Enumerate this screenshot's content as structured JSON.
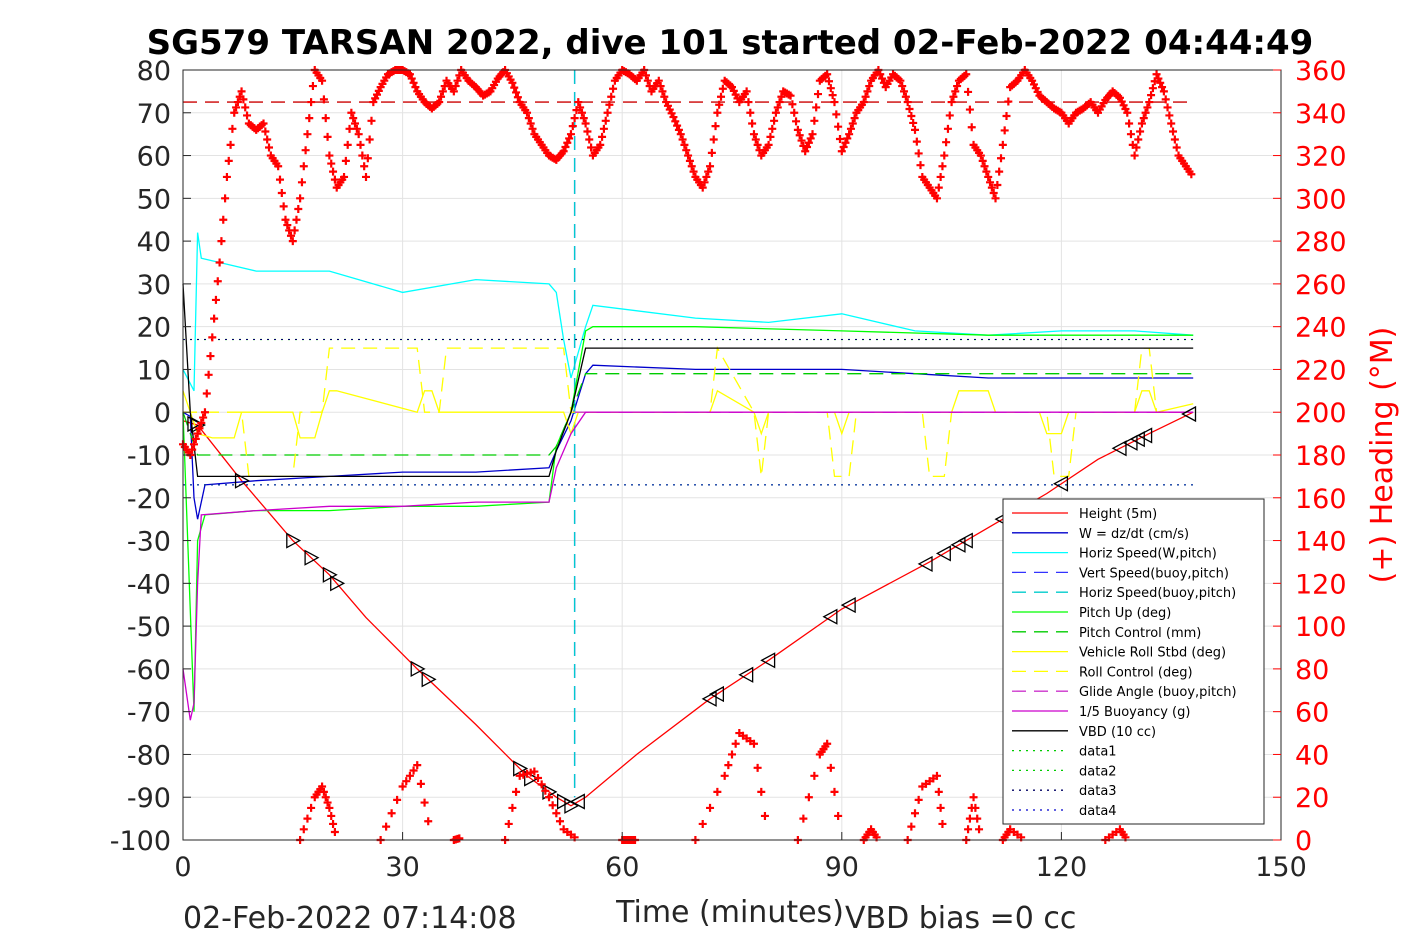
{
  "chart_data": {
    "type": "line",
    "title": "SG579 TARSAN 2022, dive 101 started 02-Feb-2022 04:44:49",
    "xlabel": "Time (minutes)",
    "ylabel_right": "(+) Heading (°M)",
    "xlim": [
      0,
      150
    ],
    "ylim": [
      -100,
      80
    ],
    "ylim_right": [
      0,
      360
    ],
    "x_ticks": [
      "0",
      "30",
      "60",
      "90",
      "120",
      "150"
    ],
    "y_ticks": [
      "80",
      "70",
      "60",
      "50",
      "40",
      "30",
      "20",
      "10",
      "0",
      "-10",
      "-20",
      "-30",
      "-40",
      "-50",
      "-60",
      "-70",
      "-80",
      "-90",
      "-100"
    ],
    "y_right_ticks": [
      "360",
      "340",
      "320",
      "300",
      "280",
      "260",
      "240",
      "220",
      "200",
      "180",
      "160",
      "140",
      "120",
      "100",
      "80",
      "60",
      "40",
      "20",
      "0"
    ],
    "grid": true,
    "legend_position": "bottom-right",
    "footer_left": "02-Feb-2022 07:14:08",
    "footer_right": "VBD bias =0 cc",
    "colors": {
      "height": "#ff0000",
      "w": "#0000cc",
      "horiz": "#00ffff",
      "vert_buoy": "#3333ff",
      "horiz_buoy": "#00cccc",
      "pitch": "#00ff00",
      "pitch_ctrl": "#00cc00",
      "roll": "#ffff00",
      "roll_ctrl": "#ffff00",
      "glide": "#cc33cc",
      "buoyancy": "#cc00cc",
      "vbd": "#000000",
      "heading": "#ff0000",
      "ref": "#000099"
    },
    "legend": [
      {
        "label": "Height (5m)",
        "style": "solid",
        "color": "#ff0000"
      },
      {
        "label": "W = dz/dt (cm/s)",
        "style": "solid",
        "color": "#0000cc"
      },
      {
        "label": "Horiz Speed(W,pitch)",
        "style": "solid",
        "color": "#00ffff"
      },
      {
        "label": "Vert Speed(buoy,pitch)",
        "style": "dashed",
        "color": "#3333ff"
      },
      {
        "label": "Horiz Speed(buoy,pitch)",
        "style": "dashed",
        "color": "#00cccc"
      },
      {
        "label": "Pitch Up (deg)",
        "style": "solid",
        "color": "#00ff00"
      },
      {
        "label": "Pitch Control (mm)",
        "style": "dashed",
        "color": "#00cc00"
      },
      {
        "label": "Vehicle Roll Stbd (deg)",
        "style": "solid",
        "color": "#ffff00"
      },
      {
        "label": "Roll Control (deg)",
        "style": "dashed",
        "color": "#ffff00"
      },
      {
        "label": "Glide Angle (buoy,pitch)",
        "style": "dashed",
        "color": "#cc33cc"
      },
      {
        "label": "1/5 Buoyancy (g)",
        "style": "solid",
        "color": "#cc00cc"
      },
      {
        "label": "VBD (10 cc)",
        "style": "solid",
        "color": "#000000"
      },
      {
        "label": "data1",
        "style": "dotted",
        "color": "#00cc00"
      },
      {
        "label": "data2",
        "style": "dotted",
        "color": "#00cc00"
      },
      {
        "label": "data3",
        "style": "dotted",
        "color": "#000066"
      },
      {
        "label": "data4",
        "style": "dotted",
        "color": "#0000cc"
      }
    ],
    "series": [
      {
        "name": "Height (5m)",
        "axis": "left",
        "x": [
          0,
          2,
          8,
          15,
          20,
          25,
          32,
          40,
          47,
          51,
          53,
          55,
          62,
          72,
          80,
          90,
          102,
          110,
          118,
          125,
          132,
          138
        ],
        "y": [
          -2,
          -3,
          -16,
          -30,
          -38,
          -48,
          -60,
          -73,
          -85,
          -90,
          -92,
          -90,
          -80,
          -67,
          -58,
          -46,
          -35,
          -27,
          -19,
          -11,
          -5,
          0
        ]
      },
      {
        "name": "W = dz/dt (cm/s)",
        "axis": "left",
        "x": [
          0,
          1,
          1.5,
          2,
          3,
          10,
          20,
          30,
          40,
          50,
          51,
          53,
          55,
          56,
          70,
          90,
          100,
          110,
          120,
          130,
          138
        ],
        "y": [
          0,
          -1,
          -20,
          -25,
          -17,
          -16,
          -15,
          -14,
          -14,
          -13,
          -9,
          -2,
          9,
          11,
          10,
          10,
          9,
          8,
          8,
          8,
          8
        ]
      },
      {
        "name": "Horiz Speed(W,pitch)",
        "axis": "left",
        "x": [
          0,
          1.5,
          2,
          2.5,
          5,
          10,
          20,
          30,
          40,
          50,
          51,
          52,
          53,
          55,
          56,
          70,
          80,
          90,
          100,
          110,
          120,
          130,
          138
        ],
        "y": [
          10,
          5,
          42,
          36,
          35,
          33,
          33,
          28,
          31,
          30,
          28,
          17,
          8,
          20,
          25,
          22,
          21,
          23,
          19,
          18,
          19,
          19,
          18
        ]
      },
      {
        "name": "Vert Speed(buoy,pitch)",
        "axis": "left",
        "x": [
          53.5,
          53.5
        ],
        "y": [
          80,
          -90
        ]
      },
      {
        "name": "Horiz Speed(buoy,pitch)",
        "axis": "left",
        "x": [
          53.5,
          53.5
        ],
        "y": [
          80,
          -90
        ]
      },
      {
        "name": "Pitch Up (deg)",
        "axis": "left",
        "x": [
          0,
          1.5,
          2,
          3,
          10,
          20,
          30,
          40,
          50,
          51,
          53,
          55,
          56,
          70,
          90,
          110,
          130,
          138
        ],
        "y": [
          0,
          -70,
          -30,
          -24,
          -23,
          -23,
          -22,
          -22,
          -21,
          -8,
          0,
          19,
          20,
          20,
          19,
          18,
          18,
          18
        ]
      },
      {
        "name": "Pitch Control (mm)",
        "axis": "left",
        "x": [
          0,
          2,
          3,
          50,
          51,
          53,
          55,
          138
        ],
        "y": [
          0,
          -10,
          -10,
          -10,
          -8,
          0,
          9,
          9
        ]
      },
      {
        "name": "Vehicle Roll Stbd (deg)",
        "axis": "left",
        "x": [
          0,
          2,
          4,
          7,
          8,
          15,
          16,
          18,
          19,
          20,
          21,
          32,
          33,
          34,
          35,
          52,
          53,
          54,
          56,
          72,
          73,
          78,
          79,
          80,
          89,
          90,
          91,
          105,
          106,
          110,
          111,
          117,
          118,
          120,
          121,
          130,
          131,
          132,
          133,
          138
        ],
        "y": [
          5,
          -5,
          -6,
          -6,
          0,
          0,
          -6,
          -6,
          0,
          5,
          5,
          0,
          5,
          5,
          0,
          0,
          -5,
          0,
          0,
          0,
          5,
          0,
          -5,
          0,
          0,
          -5,
          0,
          0,
          5,
          5,
          0,
          0,
          -5,
          -5,
          0,
          0,
          5,
          5,
          0,
          2
        ]
      },
      {
        "name": "Roll Control (deg)",
        "axis": "left",
        "x": [
          0,
          2,
          8,
          9,
          15,
          16,
          19,
          20,
          32,
          33,
          35,
          36,
          52,
          53,
          72,
          73,
          78,
          79,
          80,
          88,
          89,
          91,
          92,
          101,
          102,
          104,
          105,
          118,
          119,
          121,
          122,
          130,
          131,
          132,
          133,
          138
        ],
        "y": [
          0,
          0,
          0,
          -15,
          -15,
          0,
          0,
          15,
          15,
          0,
          0,
          15,
          15,
          0,
          0,
          15,
          0,
          -15,
          0,
          0,
          -15,
          -15,
          0,
          0,
          -15,
          -15,
          0,
          0,
          -15,
          -15,
          0,
          0,
          15,
          15,
          0,
          0
        ]
      },
      {
        "name": "Glide Angle (buoy,pitch)",
        "axis": "left",
        "x": [
          53.5,
          138
        ],
        "y": [
          0,
          0
        ]
      },
      {
        "name": "1/5 Buoyancy (g)",
        "axis": "left",
        "x": [
          0,
          1,
          1.5,
          2,
          2.5,
          10,
          20,
          30,
          40,
          50,
          51,
          53,
          55,
          138
        ],
        "y": [
          -60,
          -72,
          -68,
          -40,
          -24,
          -23,
          -22,
          -22,
          -21,
          -21,
          -13,
          -5,
          0,
          0
        ]
      },
      {
        "name": "VBD (10 cc)",
        "axis": "left",
        "x": [
          0,
          1,
          2,
          3,
          50,
          51,
          53,
          55,
          138
        ],
        "y": [
          30,
          0,
          -15,
          -15,
          -15,
          -9,
          0,
          15,
          15
        ]
      },
      {
        "name": "data1",
        "axis": "left",
        "x": [
          0,
          138
        ],
        "y": [
          17,
          17
        ]
      },
      {
        "name": "data2",
        "axis": "left",
        "x": [
          0,
          138
        ],
        "y": [
          -17,
          -17
        ]
      },
      {
        "name": "data3",
        "axis": "left",
        "x": [
          0,
          138
        ],
        "y": [
          17,
          17
        ]
      },
      {
        "name": "data4",
        "axis": "left",
        "x": [
          0,
          138
        ],
        "y": [
          -17,
          -17
        ]
      },
      {
        "name": "heading_ref",
        "axis": "right",
        "x": [
          0,
          138
        ],
        "y": [
          345,
          345
        ]
      },
      {
        "name": "(+) Heading (°M)",
        "axis": "right",
        "x": [
          0,
          1,
          2,
          3,
          4,
          5,
          6,
          7,
          8,
          9,
          10,
          11,
          12,
          13,
          14,
          15,
          16,
          17,
          18,
          19,
          20,
          21,
          22,
          23,
          24,
          25,
          26,
          27,
          28,
          29,
          30,
          31,
          32,
          33,
          34,
          35,
          36,
          37,
          38,
          39,
          40,
          41,
          42,
          43,
          44,
          45,
          46,
          47,
          48,
          49,
          50,
          51,
          52,
          53,
          54,
          55,
          56,
          57,
          58,
          59,
          60,
          61,
          62,
          63,
          64,
          65,
          66,
          67,
          68,
          69,
          70,
          71,
          72,
          73,
          74,
          75,
          76,
          77,
          78,
          79,
          80,
          81,
          82,
          83,
          84,
          85,
          86,
          87,
          88,
          89,
          90,
          91,
          92,
          93,
          94,
          95,
          96,
          97,
          98,
          99,
          100,
          101,
          102,
          103,
          104,
          105,
          106,
          107,
          108,
          109,
          110,
          111,
          112,
          113,
          114,
          115,
          116,
          117,
          118,
          119,
          120,
          121,
          122,
          123,
          124,
          125,
          126,
          127,
          128,
          129,
          130,
          131,
          132,
          133,
          134,
          135,
          136,
          137,
          138
        ],
        "y": [
          185,
          180,
          190,
          200,
          235,
          270,
          310,
          340,
          350,
          335,
          332,
          335,
          320,
          315,
          290,
          280,
          300,
          330,
          360,
          355,
          320,
          305,
          310,
          340,
          330,
          310,
          345,
          352,
          358,
          360,
          360,
          358,
          350,
          345,
          342,
          345,
          355,
          350,
          360,
          355,
          352,
          348,
          350,
          356,
          360,
          354,
          345,
          340,
          330,
          325,
          320,
          318,
          322,
          330,
          345,
          335,
          320,
          325,
          340,
          355,
          360,
          358,
          355,
          360,
          350,
          355,
          345,
          338,
          330,
          320,
          310,
          305,
          315,
          340,
          355,
          352,
          345,
          350,
          330,
          320,
          325,
          340,
          350,
          348,
          332,
          322,
          330,
          355,
          358,
          345,
          322,
          330,
          340,
          345,
          355,
          360,
          352,
          358,
          355,
          345,
          332,
          310,
          305,
          300,
          320,
          345,
          355,
          358,
          325,
          320,
          310,
          300,
          325,
          352,
          355,
          360,
          355,
          348,
          345,
          342,
          340,
          335,
          340,
          342,
          345,
          340,
          346,
          350,
          347,
          340,
          320,
          335,
          345,
          358,
          350,
          335,
          320,
          315,
          310
        ]
      }
    ],
    "heading_low_excursions": {
      "note": "heading wraps through 0/360; low-angle arcs drawn near bottom",
      "arcs": [
        {
          "x": [
            16,
            18,
            19,
            20,
            21
          ],
          "y": [
            0,
            20,
            25,
            15,
            0
          ]
        },
        {
          "x": [
            27,
            30,
            32,
            34
          ],
          "y": [
            0,
            25,
            35,
            0
          ]
        },
        {
          "x": [
            37,
            38
          ],
          "y": [
            0,
            1
          ]
        },
        {
          "x": [
            44,
            46,
            48,
            50,
            52,
            54
          ],
          "y": [
            0,
            30,
            32,
            20,
            5,
            0
          ]
        },
        {
          "x": [
            60,
            61,
            62
          ],
          "y": [
            0,
            0,
            0
          ]
        },
        {
          "x": [
            70,
            74,
            76,
            78,
            80
          ],
          "y": [
            0,
            30,
            50,
            45,
            0
          ]
        },
        {
          "x": [
            84,
            87,
            88,
            90
          ],
          "y": [
            0,
            40,
            45,
            0
          ]
        },
        {
          "x": [
            93,
            94,
            95
          ],
          "y": [
            0,
            5,
            0
          ]
        },
        {
          "x": [
            99,
            101,
            103,
            104
          ],
          "y": [
            0,
            25,
            30,
            0
          ]
        },
        {
          "x": [
            107,
            108,
            109
          ],
          "y": [
            0,
            20,
            0
          ]
        },
        {
          "x": [
            112,
            113,
            115
          ],
          "y": [
            0,
            5,
            0
          ]
        },
        {
          "x": [
            126,
            128,
            129
          ],
          "y": [
            0,
            5,
            0
          ]
        }
      ]
    }
  }
}
